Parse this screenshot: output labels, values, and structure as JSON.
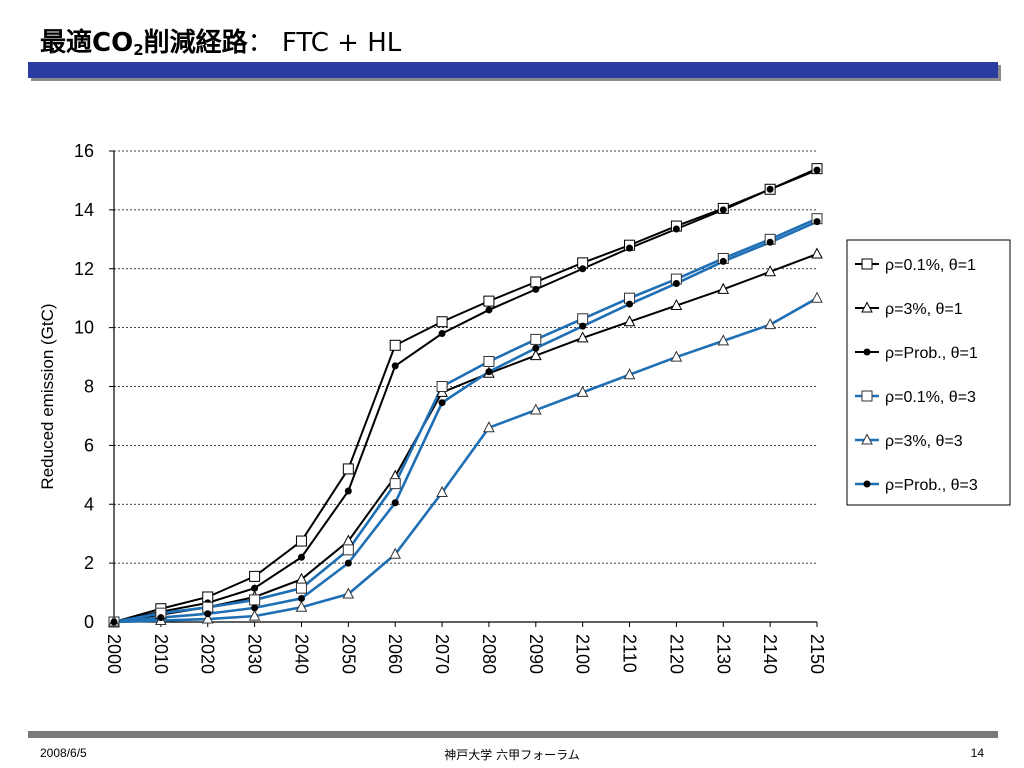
{
  "slide": {
    "title_main": "最適CO",
    "title_sub": "2",
    "title_rest": "削減経路",
    "title_suffix": "： FTC + HL"
  },
  "footer": {
    "date": "2008/6/5",
    "center": "神戸大学 六甲フォーラム",
    "page": "14"
  },
  "colors": {
    "title_bar": "#2b3ca0",
    "series_black": "#000000",
    "series_blue": "#1f6fb5"
  },
  "chart_data": {
    "type": "line",
    "title": "",
    "xlabel": "",
    "ylabel": "Reduced emission (GtC)",
    "ylim": [
      0,
      16
    ],
    "yticks": [
      0,
      2,
      4,
      6,
      8,
      10,
      12,
      14,
      16
    ],
    "grid": "horizontal-dotted",
    "legend_position": "right",
    "x": [
      2000,
      2010,
      2020,
      2030,
      2040,
      2050,
      2060,
      2070,
      2080,
      2090,
      2100,
      2110,
      2120,
      2130,
      2140,
      2150
    ],
    "series": [
      {
        "name": "ρ=0.1%, θ=1",
        "color": "#000000",
        "marker": "square",
        "values": [
          0,
          0.45,
          0.85,
          1.55,
          2.75,
          5.2,
          9.4,
          10.2,
          10.9,
          11.55,
          12.2,
          12.8,
          13.45,
          14.05,
          14.7,
          15.4
        ]
      },
      {
        "name": "ρ=3%, θ=1",
        "color": "#000000",
        "marker": "triangle",
        "values": [
          0,
          0.25,
          0.5,
          0.85,
          1.45,
          2.75,
          4.95,
          7.8,
          8.45,
          9.05,
          9.65,
          10.2,
          10.75,
          11.3,
          11.9,
          12.5
        ]
      },
      {
        "name": "ρ=Prob., θ=1",
        "color": "#000000",
        "marker": "dot",
        "values": [
          0,
          0.35,
          0.65,
          1.15,
          2.2,
          4.45,
          8.7,
          9.8,
          10.6,
          11.3,
          12.0,
          12.7,
          13.35,
          14.0,
          14.7,
          15.35
        ]
      },
      {
        "name": "ρ=0.1%, θ=3",
        "color": "#1f6fb5",
        "marker": "square",
        "values": [
          0,
          0.3,
          0.5,
          0.75,
          1.15,
          2.45,
          4.7,
          8.0,
          8.85,
          9.6,
          10.3,
          11.0,
          11.65,
          12.35,
          13.0,
          13.7
        ]
      },
      {
        "name": "ρ=3%, θ=3",
        "color": "#1f6fb5",
        "marker": "triangle",
        "values": [
          0,
          0.05,
          0.1,
          0.2,
          0.5,
          0.95,
          2.3,
          4.4,
          6.6,
          7.2,
          7.8,
          8.4,
          9.0,
          9.55,
          10.1,
          11.0
        ]
      },
      {
        "name": "ρ=Prob., θ=3",
        "color": "#1f6fb5",
        "marker": "dot",
        "values": [
          0,
          0.15,
          0.28,
          0.48,
          0.8,
          2.0,
          4.05,
          7.45,
          8.5,
          9.3,
          10.05,
          10.8,
          11.5,
          12.25,
          12.9,
          13.6
        ]
      }
    ]
  }
}
